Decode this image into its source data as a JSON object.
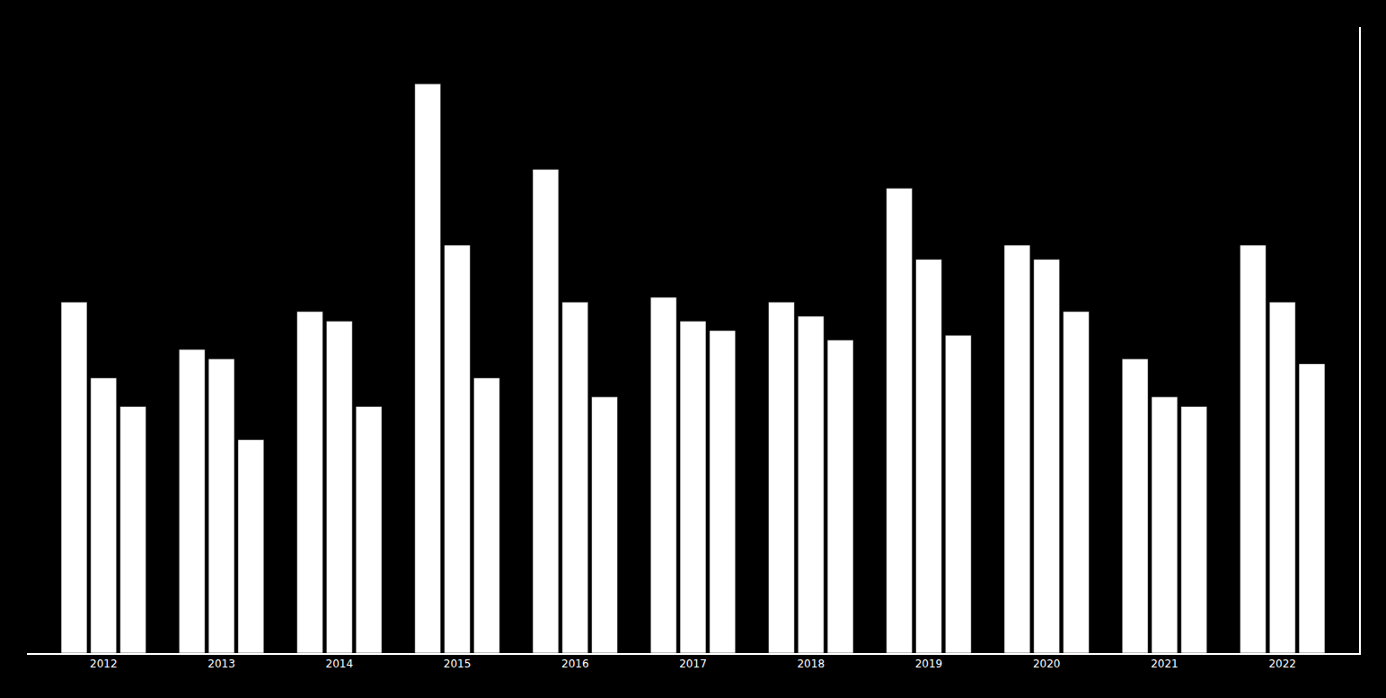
{
  "chart_data": {
    "type": "bar",
    "categories": [
      "2012",
      "2013",
      "2014",
      "2015",
      "2016",
      "2017",
      "2018",
      "2019",
      "2020",
      "2021",
      "2022"
    ],
    "series": [
      {
        "values": [
          370,
          320,
          360,
          600,
          510,
          375,
          370,
          490,
          430,
          310,
          430
        ]
      },
      {
        "values": [
          290,
          310,
          350,
          430,
          370,
          350,
          355,
          415,
          415,
          270,
          370
        ]
      },
      {
        "values": [
          260,
          225,
          260,
          290,
          270,
          340,
          330,
          335,
          360,
          260,
          305
        ]
      }
    ],
    "color": "#ffffff",
    "ylim": [
      0,
      660
    ],
    "grid": false,
    "tick_labels": "x"
  }
}
